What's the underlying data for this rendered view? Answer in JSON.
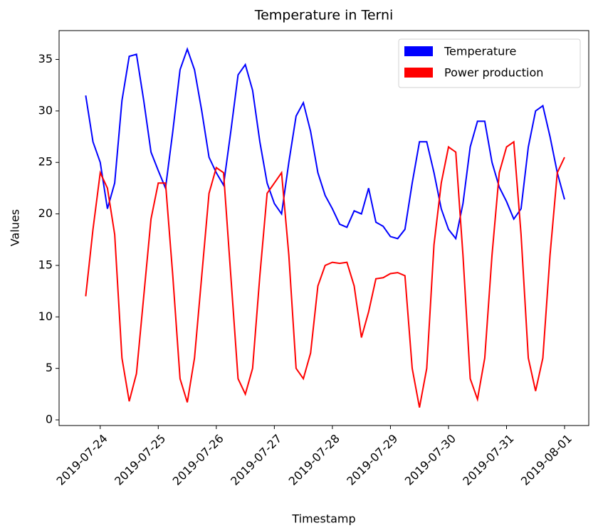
{
  "chart_data": {
    "type": "line",
    "title": "Temperature in Terni",
    "xlabel": "Timestamp",
    "ylabel": "Values",
    "x": [
      "2019-07-23 18:00",
      "2019-07-23 21:00",
      "2019-07-24 00:00",
      "2019-07-24 03:00",
      "2019-07-24 06:00",
      "2019-07-24 09:00",
      "2019-07-24 12:00",
      "2019-07-24 15:00",
      "2019-07-24 18:00",
      "2019-07-24 21:00",
      "2019-07-25 00:00",
      "2019-07-25 03:00",
      "2019-07-25 06:00",
      "2019-07-25 09:00",
      "2019-07-25 12:00",
      "2019-07-25 15:00",
      "2019-07-25 18:00",
      "2019-07-25 21:00",
      "2019-07-26 00:00",
      "2019-07-26 03:00",
      "2019-07-26 06:00",
      "2019-07-26 09:00",
      "2019-07-26 12:00",
      "2019-07-26 15:00",
      "2019-07-26 18:00",
      "2019-07-26 21:00",
      "2019-07-27 00:00",
      "2019-07-27 03:00",
      "2019-07-27 06:00",
      "2019-07-27 09:00",
      "2019-07-27 12:00",
      "2019-07-27 15:00",
      "2019-07-27 18:00",
      "2019-07-27 21:00",
      "2019-07-28 00:00",
      "2019-07-28 03:00",
      "2019-07-28 06:00",
      "2019-07-28 09:00",
      "2019-07-28 12:00",
      "2019-07-28 15:00",
      "2019-07-28 18:00",
      "2019-07-28 21:00",
      "2019-07-29 00:00",
      "2019-07-29 03:00",
      "2019-07-29 06:00",
      "2019-07-29 09:00",
      "2019-07-29 12:00",
      "2019-07-29 15:00",
      "2019-07-29 18:00",
      "2019-07-29 21:00",
      "2019-07-30 00:00",
      "2019-07-30 03:00",
      "2019-07-30 06:00",
      "2019-07-30 09:00",
      "2019-07-30 12:00",
      "2019-07-30 15:00",
      "2019-07-30 18:00",
      "2019-07-30 21:00",
      "2019-07-31 00:00",
      "2019-07-31 03:00",
      "2019-07-31 06:00",
      "2019-07-31 09:00",
      "2019-07-31 12:00",
      "2019-07-31 15:00",
      "2019-07-31 18:00",
      "2019-07-31 21:00",
      "2019-08-01 00:00"
    ],
    "series": [
      {
        "name": "Temperature",
        "color": "#0000ff",
        "values": [
          31.5,
          27,
          25,
          20.5,
          23,
          31,
          35.3,
          35.5,
          31,
          26,
          24.2,
          22.5,
          28,
          34,
          36,
          34,
          30,
          25.5,
          24,
          22.8,
          28,
          33.5,
          34.5,
          32,
          27,
          23,
          21,
          20,
          25,
          29.5,
          30.8,
          28,
          24,
          21.8,
          20.5,
          19,
          18.7,
          20.3,
          20,
          22.5,
          19.2,
          18.8,
          17.8,
          17.6,
          18.5,
          23,
          27,
          27,
          24,
          20.5,
          18.5,
          17.6,
          21,
          26.5,
          29,
          29,
          25,
          22.6,
          21.2,
          19.5,
          20.5,
          26.5,
          30,
          30.5,
          27.5,
          24,
          21.4
        ]
      },
      {
        "name": "Power production",
        "color": "#ff0000",
        "values": [
          12,
          18.5,
          24,
          22.5,
          18,
          6,
          1.8,
          4.5,
          12,
          19.5,
          23,
          23,
          14,
          4,
          1.7,
          6,
          14,
          22,
          24.5,
          24,
          14,
          4,
          2.5,
          5,
          14,
          22,
          23,
          24,
          16,
          5,
          4,
          6.5,
          13,
          15,
          15.3,
          15.2,
          15.3,
          13,
          8,
          10.5,
          13.7,
          13.8,
          14.2,
          14.3,
          14,
          5,
          1.2,
          5,
          17,
          23,
          26.5,
          26,
          16,
          4,
          2,
          6,
          16,
          24,
          26.5,
          27,
          18,
          6,
          2.8,
          6,
          16,
          24,
          25.5
        ]
      }
    ],
    "xlim": [
      "2019-07-23 07:00",
      "2019-08-01 10:00"
    ],
    "xticks": [
      "2019-07-24",
      "2019-07-25",
      "2019-07-26",
      "2019-07-27",
      "2019-07-28",
      "2019-07-29",
      "2019-07-30",
      "2019-07-31",
      "2019-08-01"
    ],
    "ylim": [
      -0.55,
      37.8
    ],
    "yticks": [
      0,
      5,
      10,
      15,
      20,
      25,
      30,
      35
    ],
    "legend": "upper right"
  }
}
